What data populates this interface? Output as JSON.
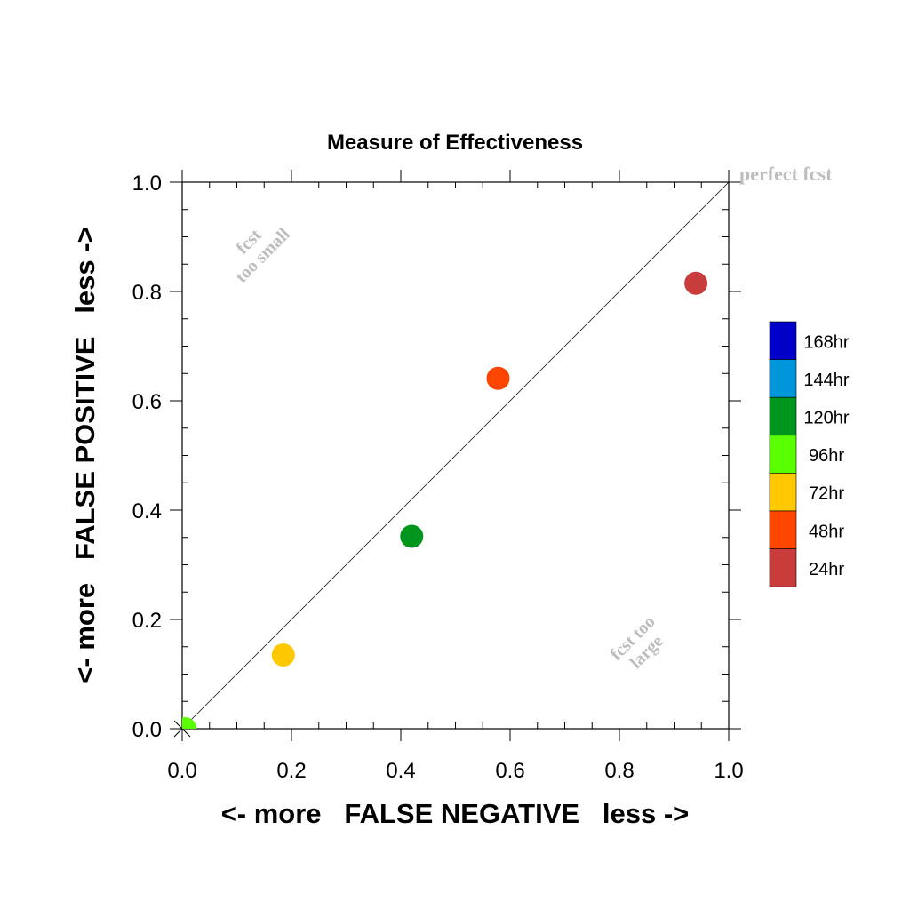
{
  "chart_data": {
    "type": "scatter",
    "title": "Measure of Effectiveness",
    "xlabel": "<- more   FALSE NEGATIVE   less ->",
    "ylabel": "<- more   FALSE POSITIVE   less ->",
    "xlim": [
      0.0,
      1.0
    ],
    "ylim": [
      0.0,
      1.0
    ],
    "x_ticks": [
      "0.0",
      "0.2",
      "0.4",
      "0.6",
      "0.8",
      "1.0"
    ],
    "y_ticks": [
      "0.0",
      "0.2",
      "0.4",
      "0.6",
      "0.8",
      "1.0"
    ],
    "grid": false,
    "reference_line": {
      "from": [
        0.0,
        0.0
      ],
      "to": [
        1.0,
        1.0
      ]
    },
    "annotations": {
      "perfect": "perfect fcst",
      "too_small_1": "fcst",
      "too_small_2": "too small",
      "too_large_1": "fcst too",
      "too_large_2": "large"
    },
    "legend": {
      "placement": "right",
      "items": [
        {
          "label": "168hr",
          "color": "#0000c8"
        },
        {
          "label": "144hr",
          "color": "#0096dc"
        },
        {
          "label": "120hr",
          "color": "#00961e"
        },
        {
          "label": "96hr",
          "color": "#5aff00"
        },
        {
          "label": "72hr",
          "color": "#ffc800"
        },
        {
          "label": "48hr",
          "color": "#ff4600"
        },
        {
          "label": "24hr",
          "color": "#c83c3c"
        }
      ]
    },
    "points": [
      {
        "x": 0.94,
        "y": 0.815,
        "color": "#c83c3c"
      },
      {
        "x": 0.578,
        "y": 0.641,
        "color": "#ff4600"
      },
      {
        "x": 0.42,
        "y": 0.352,
        "color": "#00961e"
      },
      {
        "x": 0.185,
        "y": 0.135,
        "color": "#ffc800"
      },
      {
        "x": 0.005,
        "y": 0.0,
        "color": "#5aff00"
      }
    ]
  }
}
